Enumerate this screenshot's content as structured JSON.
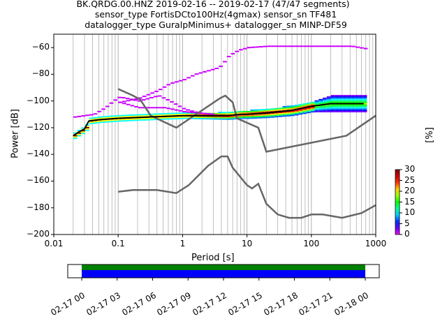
{
  "chart_data": {
    "type": "heatmap",
    "title_lines": [
      "BK.QRDG.00.HNZ   2019-02-16 -- 2019-02-17  (47/47 segments)",
      "sensor_type FortisDCto100Hz(4gmax) sensor_sn TF481",
      "datalogger_type GuralpMinimus+ datalogger_sn MINP-DF59"
    ],
    "xlabel": "Period [s]",
    "ylabel": "Power [dB]",
    "xscale": "log",
    "xlim": [
      0.01,
      1000
    ],
    "ylim": [
      -200,
      -50
    ],
    "xticks": [
      {
        "v": 0.01,
        "l": "0.01"
      },
      {
        "v": 0.1,
        "l": "0.1"
      },
      {
        "v": 1,
        "l": "1"
      },
      {
        "v": 10,
        "l": "10"
      },
      {
        "v": 100,
        "l": "100"
      },
      {
        "v": 1000,
        "l": "1000"
      }
    ],
    "yticks": [
      -200,
      -180,
      -160,
      -140,
      -120,
      -100,
      -80,
      -60
    ],
    "grid": "vertical, major and minor",
    "colorbar": {
      "label": "[%]",
      "min": 0,
      "max": 30,
      "ticks": [
        0,
        5,
        10,
        15,
        20,
        25,
        30
      ]
    },
    "mean": [
      [
        0.02,
        -126
      ],
      [
        0.025,
        -123
      ],
      [
        0.03,
        -121
      ],
      [
        0.035,
        -115
      ],
      [
        0.05,
        -114
      ],
      [
        0.1,
        -113
      ],
      [
        0.3,
        -112
      ],
      [
        1,
        -111
      ],
      [
        3,
        -111
      ],
      [
        5,
        -111
      ],
      [
        8,
        -110
      ],
      [
        10,
        -110
      ],
      [
        20,
        -109
      ],
      [
        50,
        -107
      ],
      [
        100,
        -104
      ],
      [
        200,
        -102
      ],
      [
        400,
        -102
      ],
      [
        650,
        -102
      ]
    ],
    "band_halfwidth_db": [
      [
        0.02,
        2
      ],
      [
        0.1,
        2
      ],
      [
        1,
        2
      ],
      [
        10,
        3
      ],
      [
        100,
        4
      ],
      [
        200,
        6
      ],
      [
        650,
        6
      ]
    ],
    "outliers_high": [
      [
        0.1,
        -101
      ],
      [
        0.2,
        -98
      ],
      [
        0.4,
        -92
      ],
      [
        0.6,
        -87
      ],
      [
        1,
        -84
      ],
      [
        1.5,
        -80
      ],
      [
        2.5,
        -77
      ],
      [
        3.5,
        -75
      ],
      [
        4,
        -72
      ],
      [
        5,
        -66
      ],
      [
        7,
        -62
      ],
      [
        10,
        -60
      ],
      [
        20,
        -59
      ],
      [
        400,
        -59
      ],
      [
        700,
        -61
      ]
    ],
    "outliers_mid": [
      [
        0.02,
        -112
      ],
      [
        0.04,
        -110
      ],
      [
        0.06,
        -105
      ],
      [
        0.08,
        -100
      ],
      [
        0.1,
        -97
      ],
      [
        0.2,
        -100
      ],
      [
        0.4,
        -96
      ],
      [
        0.6,
        -100
      ],
      [
        1,
        -106
      ],
      [
        2,
        -110
      ]
    ],
    "outliers_low": [
      [
        0.1,
        -101
      ],
      [
        0.2,
        -105
      ],
      [
        0.5,
        -105
      ],
      [
        1,
        -108
      ],
      [
        3,
        -110
      ]
    ],
    "nhnm": [
      [
        0.1,
        -91
      ],
      [
        0.17,
        -96
      ],
      [
        0.22,
        -99
      ],
      [
        0.32,
        -111
      ],
      [
        0.8,
        -120
      ],
      [
        3.8,
        -98
      ],
      [
        4.6,
        -96
      ],
      [
        6,
        -101
      ],
      [
        7,
        -113
      ],
      [
        15,
        -120
      ],
      [
        20,
        -138
      ],
      [
        350,
        -126
      ],
      [
        1000,
        -111
      ]
    ],
    "nlnm": [
      [
        0.1,
        -168
      ],
      [
        0.17,
        -166.7
      ],
      [
        0.4,
        -166.7
      ],
      [
        0.8,
        -169
      ],
      [
        1.25,
        -163
      ],
      [
        2.5,
        -148.5
      ],
      [
        4,
        -141.5
      ],
      [
        5,
        -141.5
      ],
      [
        6,
        -150
      ],
      [
        10,
        -163
      ],
      [
        12,
        -165.5
      ],
      [
        15,
        -162
      ],
      [
        20,
        -177
      ],
      [
        30,
        -185
      ],
      [
        45,
        -187.5
      ],
      [
        70,
        -187.5
      ],
      [
        100,
        -185
      ],
      [
        150,
        -185
      ],
      [
        300,
        -187.5
      ],
      [
        600,
        -184
      ],
      [
        1000,
        -178
      ]
    ],
    "coverage": {
      "tick_labels": [
        "02-17 00",
        "02-17 03",
        "02-17 06",
        "02-17 09",
        "02-17 12",
        "02-17 15",
        "02-17 18",
        "02-17 21",
        "02-18 00"
      ],
      "data_span_hours": [
        0,
        24
      ],
      "colors": {
        "green": "#008000",
        "blue": "#0000ff"
      }
    }
  }
}
